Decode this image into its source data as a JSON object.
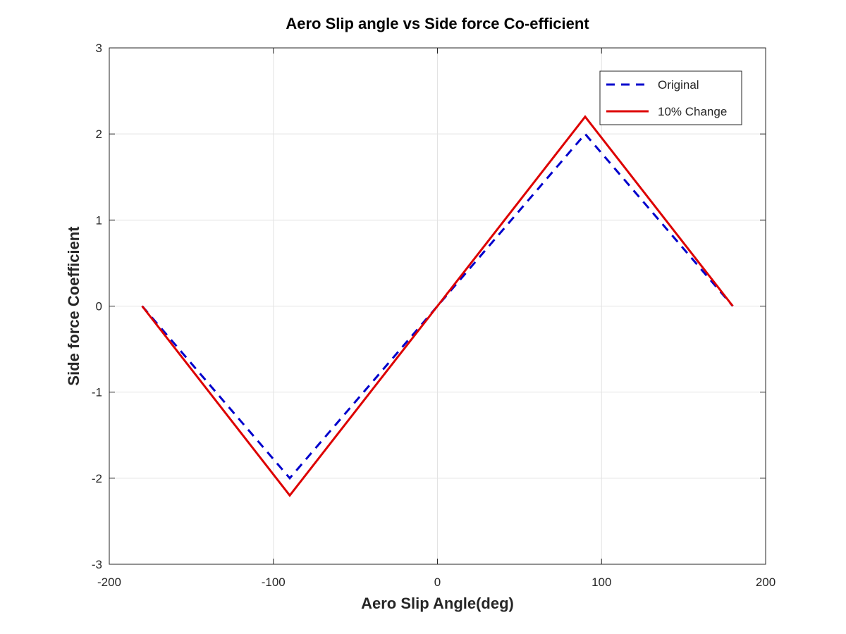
{
  "chart_data": {
    "type": "line",
    "title": "Aero Slip angle vs Side force Co-efficient",
    "xlabel": "Aero Slip Angle(deg)",
    "ylabel": "Side force Coefficient",
    "xlim": [
      -200,
      200
    ],
    "ylim": [
      -3,
      3
    ],
    "xticks": [
      -200,
      -100,
      0,
      100,
      200
    ],
    "yticks": [
      -3,
      -2,
      -1,
      0,
      1,
      2,
      3
    ],
    "xtick_labels": [
      "-200",
      "-100",
      "0",
      "100",
      "200"
    ],
    "ytick_labels": [
      "-3",
      "-2",
      "-1",
      "0",
      "1",
      "2",
      "3"
    ],
    "grid": true,
    "legend_position": "top-right",
    "series": [
      {
        "name": "Original",
        "color": "#0000cc",
        "line_style": "dashed",
        "x": [
          -180,
          -90,
          0,
          90,
          180
        ],
        "y": [
          0,
          -2,
          0,
          2,
          0
        ]
      },
      {
        "name": "10% Change",
        "color": "#dd0000",
        "line_style": "solid",
        "x": [
          -180,
          -90,
          0,
          90,
          180
        ],
        "y": [
          0,
          -2.2,
          0,
          2.2,
          0
        ]
      }
    ]
  }
}
